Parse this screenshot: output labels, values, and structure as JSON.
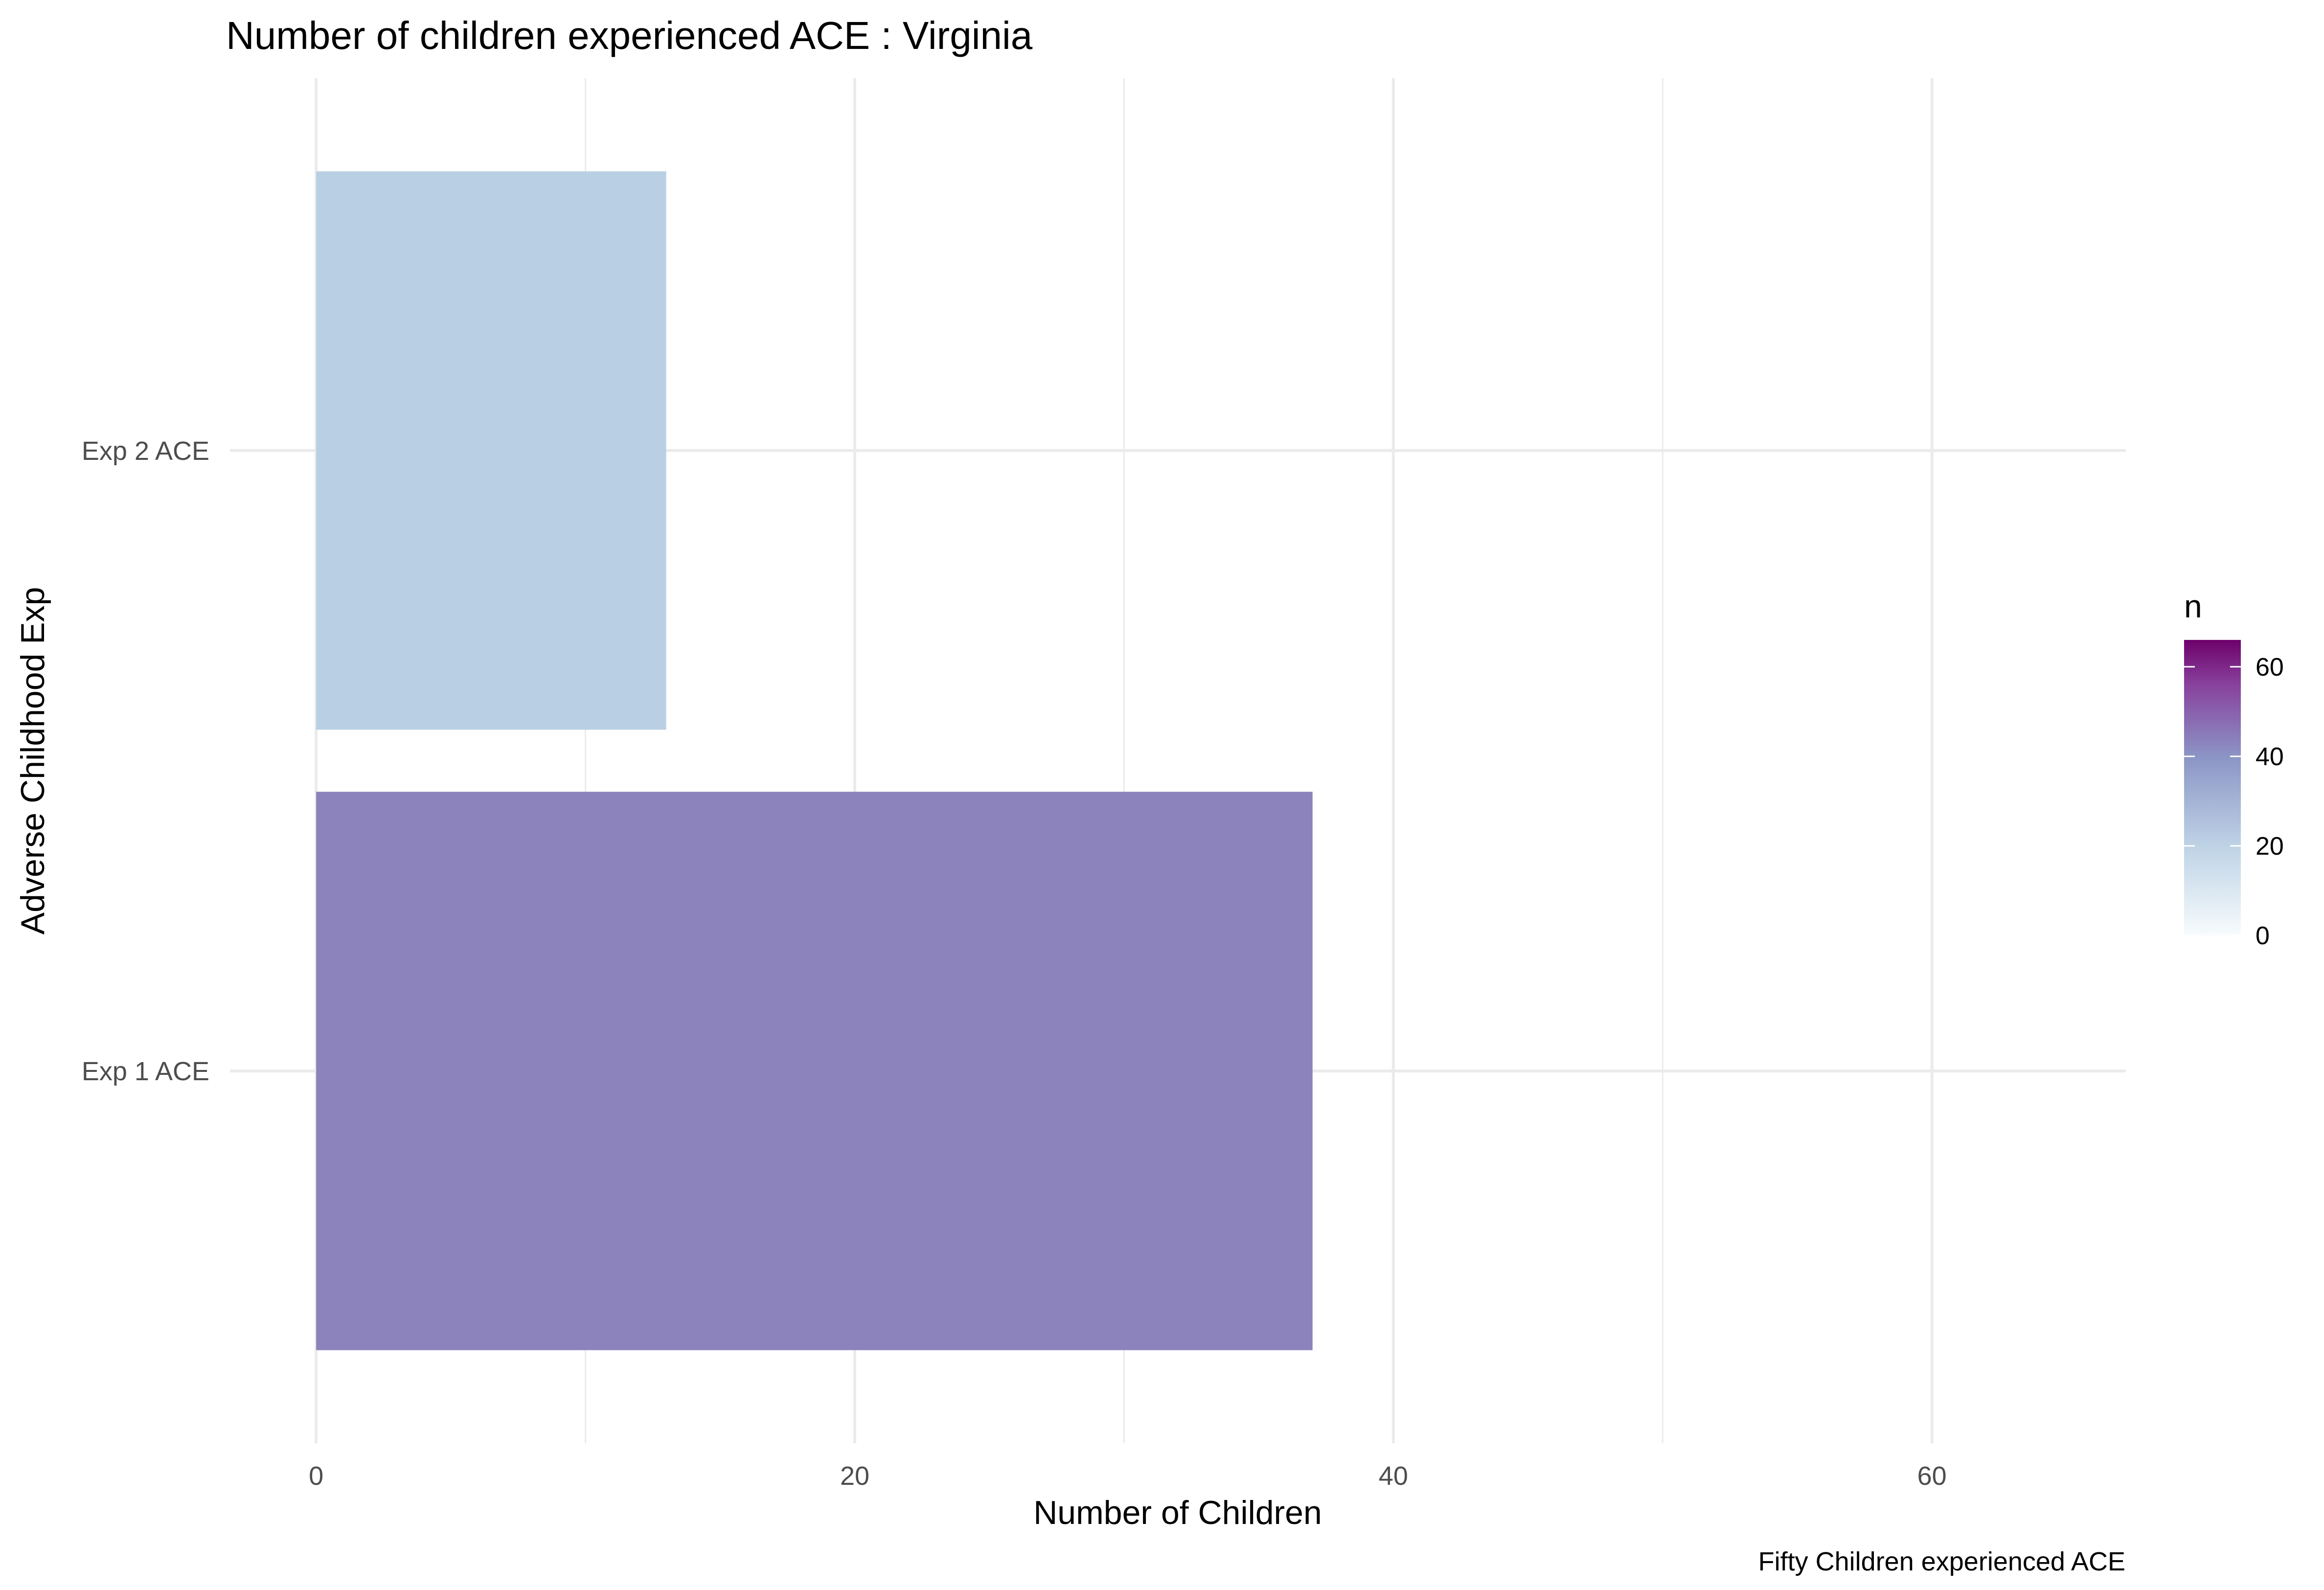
{
  "chart_data": {
    "type": "bar",
    "orientation": "horizontal",
    "title": "Number of children experienced ACE : Virginia",
    "xlabel": "Number of Children",
    "ylabel": "Adverse Childhood Exp",
    "caption": "Fifty Children experienced ACE",
    "categories": [
      "Exp 1 ACE",
      "Exp 2 ACE"
    ],
    "values": [
      37,
      13
    ],
    "xlim": [
      -3.2,
      67.2
    ],
    "x_ticks": [
      0,
      20,
      40,
      60
    ],
    "grid": true,
    "legend": {
      "title": "n",
      "type": "colorbar",
      "placement": "right",
      "range": [
        0,
        66
      ],
      "ticks": [
        0,
        20,
        40,
        60
      ],
      "colors": [
        "#f7fcfd",
        "#bfd3e6",
        "#8c96c6",
        "#88419d",
        "#6e016b"
      ]
    },
    "bar_colors": [
      "#8c83bc",
      "#b9cfe4"
    ]
  }
}
